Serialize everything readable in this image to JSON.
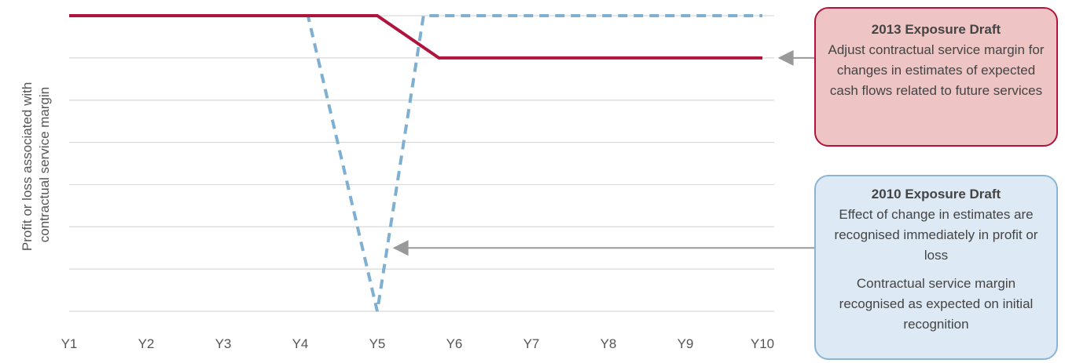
{
  "chart_data": {
    "type": "line",
    "ylabel": "Profit or loss associated with contractual service margin",
    "categories": [
      "Y1",
      "Y2",
      "Y3",
      "Y4",
      "Y5",
      "Y6",
      "Y7",
      "Y8",
      "Y9",
      "Y10"
    ],
    "ylim": [
      0,
      7
    ],
    "grid": true,
    "series": [
      {
        "name": "2013 Exposure Draft",
        "style": "solid",
        "color": "#b0143c",
        "x": [
          1,
          5,
          5.8,
          10
        ],
        "y": [
          7,
          7,
          6,
          6
        ]
      },
      {
        "name": "2010 Exposure Draft",
        "style": "dashed",
        "color": "#7fb0d2",
        "x": [
          1,
          4.1,
          5,
          5.6,
          10
        ],
        "y": [
          7,
          7,
          0,
          7,
          7
        ]
      }
    ],
    "annotations": [
      {
        "id": "ed2013",
        "title": "2013 Exposure Draft",
        "body": "Adjust contractual service margin for changes in estimates of expected cash flows related to future services",
        "points_to": {
          "x": 10.2,
          "y": 6
        }
      },
      {
        "id": "ed2010",
        "title": "2010 Exposure Draft",
        "body": "Effect of change in estimates are recognised immediately in profit or loss",
        "note": "Contractual service margin recognised as expected on initial recognition",
        "points_to": {
          "x": 5.2,
          "y": 1.5
        }
      }
    ]
  },
  "colors": {
    "grid": "#d9d9d9",
    "arrow": "#999999",
    "text": "#555555"
  }
}
